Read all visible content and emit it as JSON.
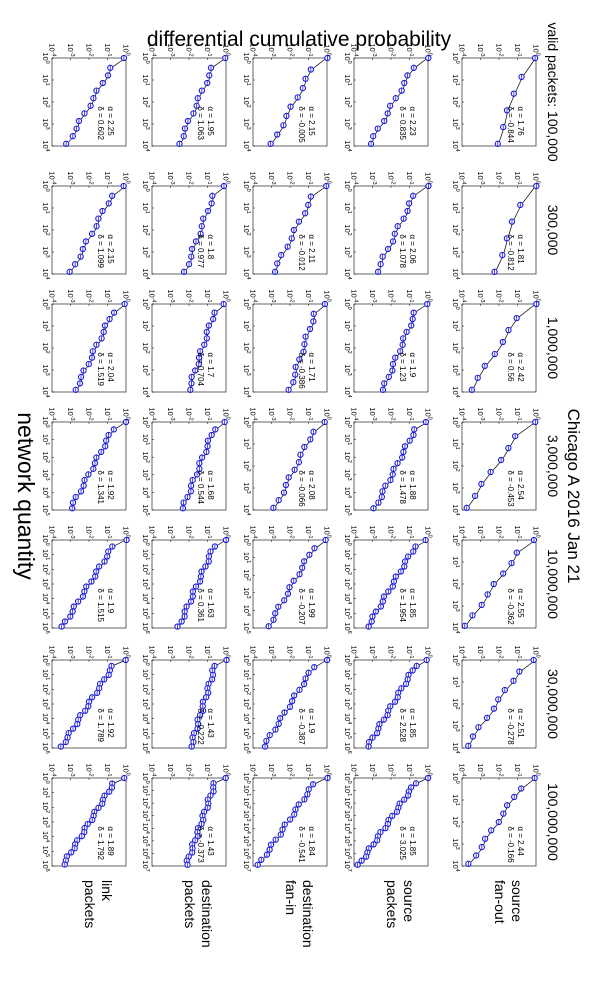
{
  "title": "Chicago A 2016 Jan 21",
  "xlabel": "network quantity",
  "ylabel": "differential cumulative probability",
  "row_label_prefix": "valid packets: ",
  "alpha_symbol": "α",
  "delta_symbol": "δ",
  "colors": {
    "marker": "#1a1adb",
    "fit": "#000000",
    "axes": "#000000"
  },
  "rows": [
    "100,000",
    "300,000",
    "1,000,000",
    "3,000,000",
    "10,000,000",
    "30,000,000",
    "100,000,000"
  ],
  "cols": [
    {
      "lines": [
        "source",
        "fan-out"
      ]
    },
    {
      "lines": [
        "source",
        "packets"
      ]
    },
    {
      "lines": [
        "destination",
        "fan-in"
      ]
    },
    {
      "lines": [
        "destination",
        "packets"
      ]
    },
    {
      "lines": [
        "link",
        "packets"
      ]
    }
  ],
  "chart_data": {
    "type": "scatter",
    "xscale": "log",
    "yscale": "log",
    "ylim_exp": [
      -4,
      0
    ],
    "panels": [
      [
        {
          "alpha": "1.76",
          "delta": "-0.844",
          "xmax": 4,
          "n": 6
        },
        {
          "alpha": "2.23",
          "delta": "0.835",
          "xmax": 4,
          "n": 12
        },
        {
          "alpha": "2.15",
          "delta": "-0.005",
          "xmax": 4,
          "n": 10
        },
        {
          "alpha": "1.95",
          "delta": "1.063",
          "xmax": 4,
          "n": 12
        },
        {
          "alpha": "2.25",
          "delta": "0.602",
          "xmax": 4,
          "n": 12
        }
      ],
      [
        {
          "alpha": "1.81",
          "delta": "-0.812",
          "xmax": 4,
          "n": 6
        },
        {
          "alpha": "2.06",
          "delta": "1.078",
          "xmax": 4,
          "n": 12
        },
        {
          "alpha": "2.11",
          "delta": "-0.012",
          "xmax": 4,
          "n": 11
        },
        {
          "alpha": "1.8",
          "delta": "0.977",
          "xmax": 4,
          "n": 12
        },
        {
          "alpha": "2.15",
          "delta": "1.099",
          "xmax": 4,
          "n": 12
        }
      ],
      [
        {
          "alpha": "2.42",
          "delta": "0.56",
          "xmax": 4,
          "n": 8
        },
        {
          "alpha": "1.9",
          "delta": "1.23",
          "xmax": 4,
          "n": 14
        },
        {
          "alpha": "1.71",
          "delta": "-0.386",
          "xmax": 4,
          "n": 12
        },
        {
          "alpha": "1.7",
          "delta": "0.704",
          "xmax": 4,
          "n": 14
        },
        {
          "alpha": "2.04",
          "delta": "1.519",
          "xmax": 4,
          "n": 14
        }
      ],
      [
        {
          "alpha": "2.54",
          "delta": "-0.453",
          "xmax": 4,
          "n": 8
        },
        {
          "alpha": "1.88",
          "delta": "1.478",
          "xmax": 5,
          "n": 16
        },
        {
          "alpha": "2.08",
          "delta": "-0.066",
          "xmax": 4,
          "n": 12
        },
        {
          "alpha": "1.68",
          "delta": "0.544",
          "xmax": 5,
          "n": 16
        },
        {
          "alpha": "1.92",
          "delta": "1.341",
          "xmax": 5,
          "n": 16
        }
      ],
      [
        {
          "alpha": "2.55",
          "delta": "-0.362",
          "xmax": 4,
          "n": 9
        },
        {
          "alpha": "1.85",
          "delta": "1.954",
          "xmax": 6,
          "n": 18
        },
        {
          "alpha": "1.99",
          "delta": "-0.207",
          "xmax": 5,
          "n": 14
        },
        {
          "alpha": "1.63",
          "delta": "0.361",
          "xmax": 6,
          "n": 18
        },
        {
          "alpha": "1.9",
          "delta": "1.515",
          "xmax": 6,
          "n": 18
        }
      ],
      [
        {
          "alpha": "2.51",
          "delta": "-0.278",
          "xmax": 4,
          "n": 10
        },
        {
          "alpha": "1.85",
          "delta": "2.528",
          "xmax": 6,
          "n": 20
        },
        {
          "alpha": "1.9",
          "delta": "-0.387",
          "xmax": 6,
          "n": 16
        },
        {
          "alpha": "1.43",
          "delta": "-0.222",
          "xmax": 6,
          "n": 20
        },
        {
          "alpha": "1.92",
          "delta": "1.789",
          "xmax": 6,
          "n": 20
        }
      ],
      [
        {
          "alpha": "2.44",
          "delta": "-0.166",
          "xmax": 4,
          "n": 11
        },
        {
          "alpha": "1.85",
          "delta": "3.025",
          "xmax": 7,
          "n": 22
        },
        {
          "alpha": "1.84",
          "delta": "-0.541",
          "xmax": 7,
          "n": 18
        },
        {
          "alpha": "1.43",
          "delta": "-0.373",
          "xmax": 7,
          "n": 22
        },
        {
          "alpha": "1.89",
          "delta": "1.792",
          "xmax": 6,
          "n": 22
        }
      ]
    ]
  }
}
